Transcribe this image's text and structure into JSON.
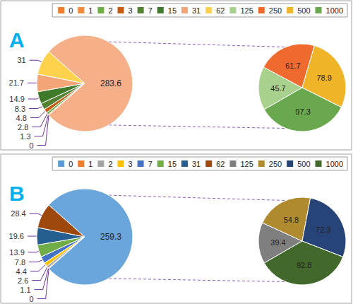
{
  "chart_data": [
    {
      "type": "pie",
      "title": "A",
      "legend": "top-right",
      "data_labels": true,
      "series": [
        {
          "categories": [
            "0",
            "1",
            "2",
            "3",
            "7",
            "15",
            "31",
            "62",
            null
          ],
          "values": [
            0,
            1.3,
            2.8,
            4.8,
            8.3,
            14.9,
            21.7,
            31,
            283.6
          ],
          "colors": [
            "#ed7d31",
            "#f08a3e",
            "#70ad47",
            "#c55a11",
            "#548235",
            "#3f7a2a",
            "#f4a577",
            "#ffd24d",
            "#f5b08a"
          ]
        },
        {
          "categories": [
            "125",
            "250",
            "500",
            "1000"
          ],
          "values": [
            45.7,
            61.7,
            78.9,
            97.3
          ],
          "colors": [
            "#a9d18e",
            "#ef6a2e",
            "#f0b429",
            "#6aa84f"
          ]
        }
      ]
    },
    {
      "type": "pie",
      "title": "B",
      "legend": "top-right",
      "data_labels": true,
      "series": [
        {
          "categories": [
            "0",
            "1",
            "2",
            "3",
            "7",
            "15",
            "31",
            "62",
            null
          ],
          "values": [
            0,
            1.1,
            2.6,
            4.4,
            7.8,
            13.9,
            19.6,
            28.4,
            259.3
          ],
          "colors": [
            "#5b9bd5",
            "#ed7d31",
            "#a5a5a5",
            "#ffc000",
            "#4472c4",
            "#70ad47",
            "#255e91",
            "#9e480e",
            "#6aa6dc"
          ]
        },
        {
          "categories": [
            "125",
            "250",
            "500",
            "1000"
          ],
          "values": [
            39.4,
            54.8,
            72.3,
            92.8
          ],
          "colors": [
            "#7f7f7f",
            "#b08a2e",
            "#264478",
            "#43682b"
          ]
        }
      ]
    }
  ]
}
